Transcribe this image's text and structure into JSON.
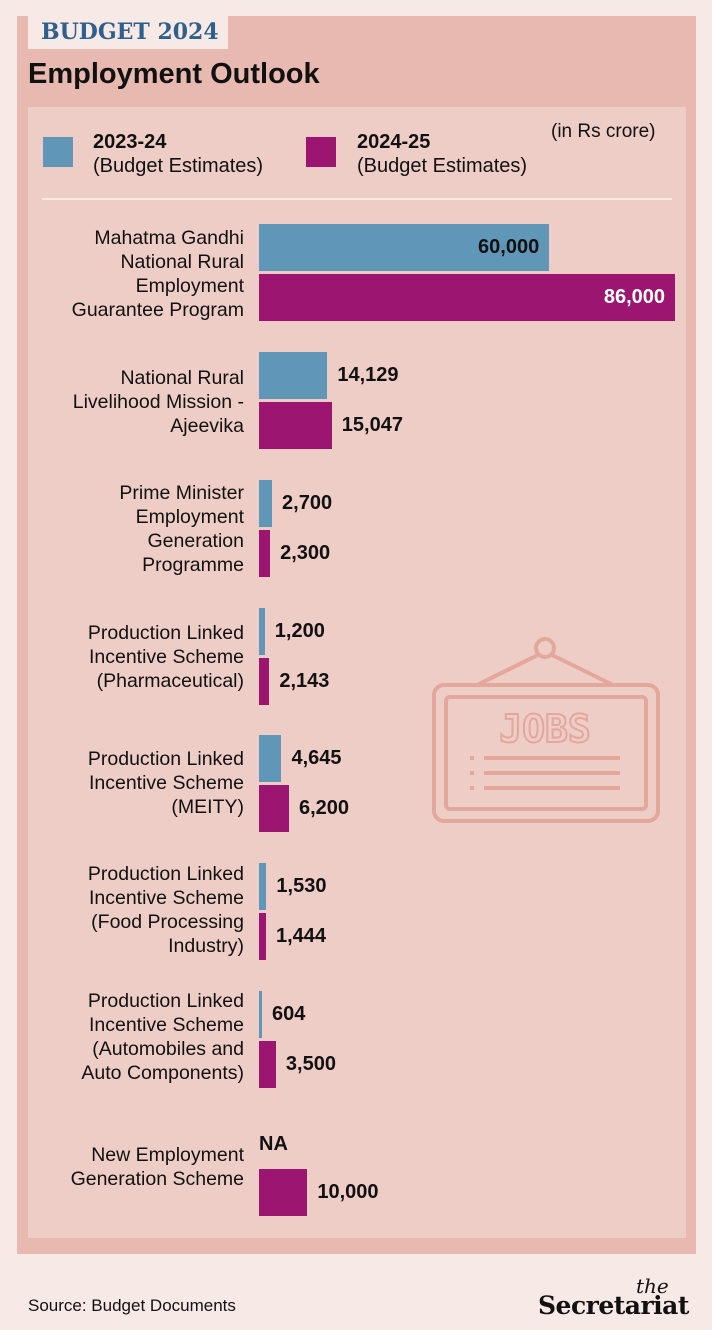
{
  "header": {
    "tag": "BUDGET 2024",
    "title": "Employment Outlook"
  },
  "legend": {
    "unit": "(in Rs crore)",
    "items": [
      {
        "year": "2023-24",
        "sub": "(Budget Estimates)",
        "color": "#6096b8"
      },
      {
        "year": "2024-25",
        "sub": "(Budget Estimates)",
        "color": "#9b1571"
      }
    ]
  },
  "icon": {
    "name": "jobs-sign-icon",
    "text": "JOBS"
  },
  "chart_data": {
    "type": "bar",
    "orientation": "horizontal",
    "title": "Employment Outlook",
    "unit": "in Rs crore",
    "categories": [
      [
        "Mahatma Gandhi",
        "National Rural",
        "Employment",
        "Guarantee Program"
      ],
      [
        "National Rural",
        "Livelihood Mission -",
        "Ajeevika"
      ],
      [
        "Prime Minister",
        "Employment",
        "Generation",
        "Programme"
      ],
      [
        "Production Linked",
        "Incentive Scheme",
        "(Pharmaceutical)"
      ],
      [
        "Production Linked",
        "Incentive Scheme",
        "(MEITY)"
      ],
      [
        "Production Linked",
        "Incentive Scheme",
        "(Food Processing",
        "Industry)"
      ],
      [
        "Production Linked",
        "Incentive Scheme",
        "(Automobiles and",
        "Auto Components)"
      ],
      [
        "New Employment",
        "Generation Scheme"
      ]
    ],
    "series": [
      {
        "name": "2023-24 (Budget Estimates)",
        "color": "#6096b8",
        "values": [
          60000,
          14129,
          2700,
          1200,
          4645,
          1530,
          604,
          null
        ],
        "labels": [
          "60,000",
          "14,129",
          "2,700",
          "1,200",
          "4,645",
          "1,530",
          "604",
          "NA"
        ]
      },
      {
        "name": "2024-25 (Budget Estimates)",
        "color": "#9b1571",
        "values": [
          86000,
          15047,
          2300,
          2143,
          6200,
          1444,
          3500,
          10000
        ],
        "labels": [
          "86,000",
          "15,047",
          "2,300",
          "2,143",
          "6,200",
          "1,444",
          "3,500",
          "10,000"
        ]
      }
    ],
    "xlim": [
      0,
      86000
    ],
    "grid": false,
    "legend_position": "top"
  },
  "footer": {
    "source": "Source: Budget Documents",
    "brand_the": "the",
    "brand_name": "Secretariat"
  }
}
